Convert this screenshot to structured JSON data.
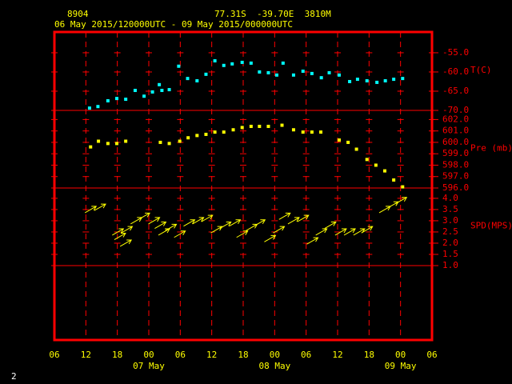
{
  "header": {
    "station": "8904",
    "location": "77.31S  -39.70E  3810M",
    "period": "06 May 2015/120000UTC - 09 May 2015/000000UTC"
  },
  "page_number": "2",
  "x_axis": {
    "xlim": [
      0,
      72
    ],
    "xticks": [
      {
        "value": 0,
        "label": "06"
      },
      {
        "value": 6,
        "label": "12"
      },
      {
        "value": 12,
        "label": "18"
      },
      {
        "value": 18,
        "label": "00"
      },
      {
        "value": 24,
        "label": "06"
      },
      {
        "value": 30,
        "label": "12"
      },
      {
        "value": 36,
        "label": "18"
      },
      {
        "value": 42,
        "label": "00"
      },
      {
        "value": 48,
        "label": "06"
      },
      {
        "value": 54,
        "label": "12"
      },
      {
        "value": 60,
        "label": "18"
      },
      {
        "value": 66,
        "label": "00"
      },
      {
        "value": 72,
        "label": "06"
      }
    ],
    "dates": [
      {
        "value": 18,
        "label": "07 May"
      },
      {
        "value": 42,
        "label": "08 May"
      },
      {
        "value": 66,
        "label": "09 May"
      }
    ]
  },
  "chart_data": [
    {
      "type": "scatter",
      "label": "T(C)",
      "color": "#00ffff",
      "x": [
        6.7,
        8.3,
        10.2,
        11.9,
        13.6,
        15.4,
        17.1,
        18.7,
        20.0,
        20.5,
        21.9,
        23.7,
        25.4,
        27.2,
        28.9,
        30.6,
        32.3,
        33.9,
        35.8,
        37.5,
        39.1,
        40.8,
        42.4,
        43.6,
        45.6,
        47.4,
        49.1,
        50.9,
        52.4,
        54.3,
        56.3,
        57.8,
        59.6,
        61.5,
        63.1,
        64.7,
        66.4
      ],
      "values": [
        -69.4,
        -69.0,
        -67.5,
        -66.9,
        -67.1,
        -64.8,
        -66.3,
        -65.2,
        -63.3,
        -64.8,
        -64.6,
        -58.5,
        -61.7,
        -62.3,
        -60.6,
        -57.1,
        -58.3,
        -57.9,
        -57.5,
        -57.7,
        -60.0,
        -60.2,
        -60.8,
        -57.7,
        -60.8,
        -59.8,
        -60.4,
        -61.5,
        -60.2,
        -60.8,
        -62.5,
        -61.9,
        -62.3,
        -62.7,
        -62.3,
        -61.9,
        -61.7
      ],
      "ylim": [
        -70,
        -49.6
      ],
      "yticks": [
        {
          "value": -55,
          "label": "-55.0"
        },
        {
          "value": -60,
          "label": "-60.0"
        },
        {
          "value": -65,
          "label": "-65.0"
        },
        {
          "value": -70,
          "label": "-70.0"
        }
      ]
    },
    {
      "type": "scatter",
      "label": "Pre (mb)",
      "color": "#ffff00",
      "x": [
        6.9,
        8.4,
        10.2,
        11.9,
        13.6,
        20.2,
        21.9,
        23.9,
        25.5,
        27.2,
        28.9,
        30.6,
        32.3,
        34.1,
        35.8,
        37.5,
        39.1,
        40.8,
        43.4,
        45.6,
        47.4,
        49.1,
        50.8,
        54.3,
        56.0,
        57.6,
        59.6,
        61.3,
        63.0,
        64.7,
        66.4
      ],
      "values": [
        599.6,
        600.1,
        599.9,
        599.9,
        600.1,
        600.0,
        599.9,
        600.1,
        600.4,
        600.6,
        600.7,
        600.9,
        600.9,
        601.1,
        601.3,
        601.4,
        601.4,
        601.4,
        601.5,
        601.1,
        600.9,
        600.9,
        600.9,
        600.2,
        600.0,
        599.4,
        598.5,
        598.0,
        597.5,
        596.7,
        596.1
      ],
      "ylim": [
        596,
        602.8
      ],
      "yticks": [
        {
          "value": 602,
          "label": "602.0"
        },
        {
          "value": 601,
          "label": "601.0"
        },
        {
          "value": 600,
          "label": "600.0"
        },
        {
          "value": 599,
          "label": "599.0"
        },
        {
          "value": 598,
          "label": "598.0"
        },
        {
          "value": 597,
          "label": "597.0"
        },
        {
          "value": 596,
          "label": "596.0"
        }
      ]
    },
    {
      "type": "arrow",
      "label": "SPD(MPS)",
      "color": "#ffff00",
      "x": [
        6.9,
        8.7,
        12.1,
        12.5,
        13.6,
        13.8,
        15.6,
        17.1,
        19.0,
        20.2,
        20.9,
        22.2,
        23.9,
        25.7,
        27.4,
        29.1,
        30.9,
        32.6,
        34.4,
        35.8,
        37.6,
        39.1,
        41.1,
        42.8,
        43.9,
        45.6,
        47.4,
        49.2,
        50.9,
        52.6,
        54.6,
        56.3,
        58.1,
        59.6,
        63.0,
        64.5,
        66.1
      ],
      "values": [
        3.5,
        3.6,
        2.5,
        2.3,
        2.0,
        2.6,
        3.0,
        3.2,
        3.0,
        2.8,
        2.5,
        2.7,
        2.4,
        2.9,
        3.0,
        3.1,
        2.6,
        2.8,
        2.9,
        2.4,
        2.7,
        2.9,
        2.2,
        2.6,
        3.2,
        3.0,
        3.1,
        2.1,
        2.5,
        2.8,
        2.5,
        2.5,
        2.5,
        2.6,
        3.5,
        3.7,
        3.9
      ],
      "ylim": [
        1,
        4.46
      ],
      "yticks": [
        {
          "value": 4,
          "label": "4.0"
        },
        {
          "value": 3.5,
          "label": "3.5"
        },
        {
          "value": 3,
          "label": "3.0"
        },
        {
          "value": 2.5,
          "label": "2.5"
        },
        {
          "value": 2,
          "label": "2.0"
        },
        {
          "value": 1.5,
          "label": "1.5"
        },
        {
          "value": 1,
          "label": "1.0"
        }
      ]
    }
  ]
}
